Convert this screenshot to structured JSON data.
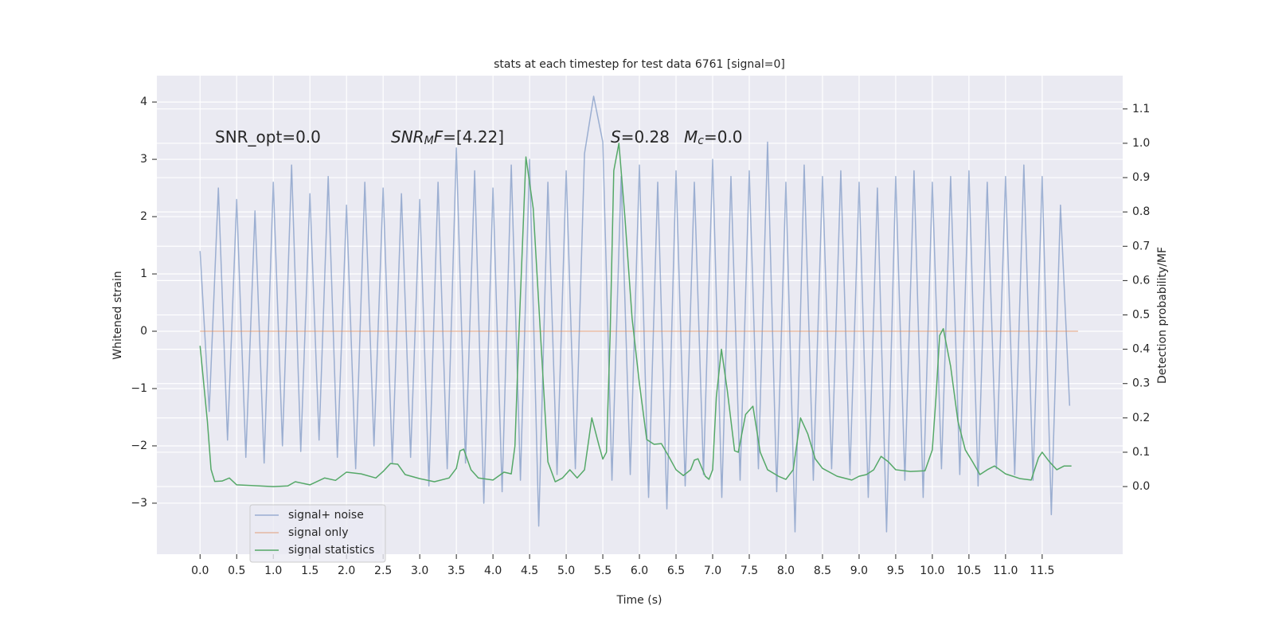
{
  "chart_data": {
    "type": "line",
    "title": "stats at each timestep for test data 6761 [signal=0]",
    "xlabel": "Time (s)",
    "ylabel": "Whitened strain",
    "y2label": "Detection probability/MF",
    "xlim": [
      -0.59,
      12.6
    ],
    "ylim": [
      -3.89,
      4.46
    ],
    "y2lim": [
      -0.197,
      1.197
    ],
    "xticks": [
      {
        "value": 0,
        "label": "0.0"
      },
      0.5,
      {
        "value": 1,
        "label": "1.0"
      },
      1.5,
      {
        "value": 2,
        "label": "2.0"
      },
      2.5,
      {
        "value": 3,
        "label": "3.0"
      },
      3.5,
      {
        "value": 4,
        "label": "4.0"
      },
      4.5,
      {
        "value": 5,
        "label": "5.0"
      },
      5.5,
      {
        "value": 6,
        "label": "6.0"
      },
      6.5,
      {
        "value": 7,
        "label": "7.0"
      },
      7.5,
      {
        "value": 8,
        "label": "8.0"
      },
      8.5,
      {
        "value": 9,
        "label": "9.0"
      },
      9.5,
      {
        "value": 10,
        "label": "10.0"
      },
      10.5,
      {
        "value": 11,
        "label": "11.0"
      },
      11.5
    ],
    "yticks": [
      {
        "value": -3,
        "label": "−3"
      },
      {
        "value": -2,
        "label": "−2"
      },
      {
        "value": -1,
        "label": "−1"
      },
      0,
      1,
      2,
      3,
      4
    ],
    "y2ticks": [
      {
        "value": 0,
        "label": "0.0"
      },
      0.1,
      0.2,
      0.3,
      0.4,
      0.5,
      0.6,
      0.7,
      0.8,
      0.9,
      {
        "value": 1,
        "label": "1.0"
      },
      1.1
    ],
    "grid": true,
    "legend": "lower left",
    "annotations": [
      [
        {
          "text": "SNR_opt=0.0",
          "style": "normal"
        }
      ],
      [
        {
          "text": "SNR",
          "style": "italic"
        },
        {
          "text": "M",
          "style": "italic-sub"
        },
        {
          "text": "F",
          "style": "italic"
        },
        {
          "text": "=[4.22]",
          "style": "normal"
        }
      ],
      [
        {
          "text": "S",
          "style": "italic"
        },
        {
          "text": "=0.28",
          "style": "normal"
        }
      ],
      [
        {
          "text": "M",
          "style": "italic"
        },
        {
          "text": "c",
          "style": "italic-sub"
        },
        {
          "text": "=0.0",
          "style": "normal"
        }
      ]
    ],
    "series": [
      {
        "name": "signal+ noise",
        "color": "#4c72b0",
        "opacity": 0.5,
        "x": [
          0,
          0.125,
          0.25,
          0.375,
          0.5,
          0.625,
          0.75,
          0.875,
          1,
          1.125,
          1.25,
          1.375,
          1.5,
          1.625,
          1.75,
          1.875,
          2,
          2.125,
          2.25,
          2.375,
          2.5,
          2.625,
          2.75,
          2.875,
          3,
          3.125,
          3.25,
          3.375,
          3.5,
          3.625,
          3.75,
          3.875,
          4,
          4.125,
          4.25,
          4.375,
          4.5,
          4.625,
          4.75,
          4.875,
          5,
          5.125,
          5.25,
          5.375,
          5.5,
          5.625,
          5.75,
          5.875,
          6,
          6.125,
          6.25,
          6.375,
          6.5,
          6.625,
          6.75,
          6.875,
          7,
          7.125,
          7.25,
          7.375,
          7.5,
          7.625,
          7.75,
          7.875,
          8,
          8.125,
          8.25,
          8.375,
          8.5,
          8.625,
          8.75,
          8.875,
          9,
          9.125,
          9.25,
          9.375,
          9.5,
          9.625,
          9.75,
          9.875,
          10,
          10.125,
          10.25,
          10.375,
          10.5,
          10.625,
          10.75,
          10.875,
          11,
          11.125,
          11.25,
          11.375,
          11.5,
          11.625,
          11.75,
          11.875
        ],
        "values": [
          1.4,
          -1.4,
          2.5,
          -1.9,
          2.3,
          -2.2,
          2.1,
          -2.3,
          2.6,
          -2.0,
          2.9,
          -2.1,
          2.4,
          -1.9,
          2.7,
          -2.2,
          2.2,
          -2.4,
          2.6,
          -2.0,
          2.5,
          -2.3,
          2.4,
          -2.2,
          2.3,
          -2.7,
          2.6,
          -2.4,
          3.2,
          -2.3,
          2.8,
          -3.0,
          2.5,
          -2.8,
          2.9,
          -2.6,
          3.0,
          -3.4,
          2.6,
          -2.5,
          2.8,
          -2.4,
          3.1,
          4.1,
          3.3,
          -2.6,
          2.7,
          -2.5,
          2.9,
          -2.9,
          2.6,
          -3.1,
          2.8,
          -2.7,
          2.6,
          -2.5,
          3.0,
          -2.9,
          2.7,
          -2.6,
          2.8,
          -2.4,
          3.3,
          -2.8,
          2.6,
          -3.5,
          2.9,
          -2.6,
          2.7,
          -2.4,
          2.8,
          -2.5,
          2.6,
          -2.9,
          2.5,
          -3.5,
          2.7,
          -2.6,
          2.8,
          -2.9,
          2.6,
          -2.4,
          2.7,
          -2.5,
          2.8,
          -2.7,
          2.6,
          -2.4,
          2.7,
          -2.5,
          2.9,
          -2.6,
          2.7,
          -3.2,
          2.2,
          -1.3
        ]
      },
      {
        "name": "signal only",
        "color": "#dd8452",
        "opacity": 0.5,
        "x": [
          0,
          11.99
        ],
        "values": [
          0,
          0
        ]
      },
      {
        "name": "signal statistics",
        "color": "#55a868",
        "opacity": 1,
        "axis": "y2",
        "x": [
          0,
          0.1,
          0.15,
          0.2,
          0.3,
          0.4,
          0.5,
          0.7,
          1.0,
          1.2,
          1.3,
          1.5,
          1.7,
          1.85,
          2.0,
          2.2,
          2.4,
          2.5,
          2.6,
          2.7,
          2.8,
          3.0,
          3.2,
          3.4,
          3.5,
          3.55,
          3.6,
          3.7,
          3.8,
          4.0,
          4.15,
          4.25,
          4.3,
          4.35,
          4.45,
          4.55,
          4.65,
          4.75,
          4.85,
          4.95,
          5.05,
          5.15,
          5.25,
          5.35,
          5.45,
          5.5,
          5.55,
          5.6,
          5.65,
          5.72,
          5.8,
          5.9,
          6.0,
          6.1,
          6.2,
          6.3,
          6.4,
          6.5,
          6.6,
          6.7,
          6.75,
          6.8,
          6.9,
          6.95,
          7.0,
          7.05,
          7.12,
          7.2,
          7.3,
          7.35,
          7.45,
          7.55,
          7.65,
          7.75,
          7.9,
          8.0,
          8.1,
          8.2,
          8.3,
          8.4,
          8.5,
          8.7,
          8.9,
          9.0,
          9.1,
          9.2,
          9.3,
          9.4,
          9.5,
          9.7,
          9.9,
          10.0,
          10.05,
          10.1,
          10.15,
          10.25,
          10.35,
          10.45,
          10.55,
          10.65,
          10.75,
          10.85,
          11.0,
          11.2,
          11.35,
          11.45,
          11.5,
          11.6,
          11.7,
          11.8,
          11.9
        ],
        "values": [
          0.41,
          0.19,
          0.05,
          0.015,
          0.016,
          0.025,
          0.005,
          0.003,
          0.0,
          0.002,
          0.014,
          0.005,
          0.025,
          0.018,
          0.042,
          0.037,
          0.025,
          0.044,
          0.067,
          0.065,
          0.035,
          0.023,
          0.014,
          0.025,
          0.053,
          0.104,
          0.109,
          0.049,
          0.025,
          0.019,
          0.042,
          0.037,
          0.118,
          0.42,
          0.96,
          0.81,
          0.44,
          0.072,
          0.014,
          0.025,
          0.049,
          0.025,
          0.049,
          0.2,
          0.118,
          0.08,
          0.1,
          0.44,
          0.92,
          1.0,
          0.79,
          0.49,
          0.3,
          0.137,
          0.123,
          0.125,
          0.088,
          0.049,
          0.032,
          0.049,
          0.077,
          0.081,
          0.03,
          0.021,
          0.049,
          0.26,
          0.4,
          0.28,
          0.104,
          0.1,
          0.21,
          0.234,
          0.1,
          0.049,
          0.03,
          0.021,
          0.049,
          0.2,
          0.153,
          0.081,
          0.053,
          0.03,
          0.019,
          0.03,
          0.035,
          0.049,
          0.088,
          0.072,
          0.049,
          0.044,
          0.046,
          0.107,
          0.26,
          0.44,
          0.46,
          0.35,
          0.19,
          0.107,
          0.072,
          0.035,
          0.049,
          0.06,
          0.037,
          0.023,
          0.019,
          0.084,
          0.1,
          0.072,
          0.049,
          0.06,
          0.06
        ]
      }
    ]
  }
}
